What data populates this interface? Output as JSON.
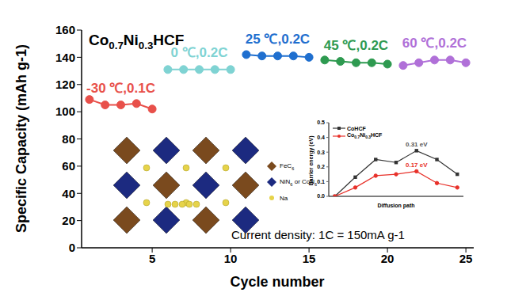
{
  "chart_data": [
    {
      "type": "line",
      "title": "Co0.7Ni0.3HCF",
      "x_label": "Cycle number",
      "y_label": "Specific Capacity (mAh g-1)",
      "x": [
        1,
        2,
        3,
        4,
        5,
        6,
        7,
        8,
        9,
        10,
        11,
        12,
        13,
        14,
        15,
        16,
        17,
        18,
        19,
        20,
        21,
        22,
        23,
        24,
        25
      ],
      "xlim": [
        0.5,
        25.5
      ],
      "xticks": [
        5,
        10,
        15,
        20,
        25
      ],
      "ylim": [
        0,
        160
      ],
      "yticks": [
        0,
        20,
        40,
        60,
        80,
        100,
        120,
        140,
        160
      ],
      "grid": false,
      "marker": "circle",
      "series": [
        {
          "name": "-30 ℃,0.1C",
          "color": "#e8504a",
          "values": [
            109,
            105,
            105,
            106,
            102,
            null,
            null,
            null,
            null,
            null,
            null,
            null,
            null,
            null,
            null,
            null,
            null,
            null,
            null,
            null,
            null,
            null,
            null,
            null,
            null
          ]
        },
        {
          "name": "0 ℃,0.2C",
          "color": "#7fd3d3",
          "values": [
            null,
            null,
            null,
            null,
            null,
            131,
            131,
            131,
            131,
            131,
            null,
            null,
            null,
            null,
            null,
            null,
            null,
            null,
            null,
            null,
            null,
            null,
            null,
            null,
            null
          ]
        },
        {
          "name": "25 ℃,0.2C",
          "color": "#1f6fcf",
          "values": [
            null,
            null,
            null,
            null,
            null,
            null,
            null,
            null,
            null,
            null,
            142,
            141,
            141,
            141,
            140,
            null,
            null,
            null,
            null,
            null,
            null,
            null,
            null,
            null,
            null
          ]
        },
        {
          "name": "45 ℃,0.2C",
          "color": "#2e9a50",
          "values": [
            null,
            null,
            null,
            null,
            null,
            null,
            null,
            null,
            null,
            null,
            null,
            null,
            null,
            null,
            null,
            138,
            137,
            136,
            136,
            135,
            null,
            null,
            null,
            null,
            null
          ]
        },
        {
          "name": "60 ℃,0.2C",
          "color": "#b070d8",
          "values": [
            null,
            null,
            null,
            null,
            null,
            null,
            null,
            null,
            null,
            null,
            null,
            null,
            null,
            null,
            null,
            null,
            null,
            null,
            null,
            null,
            134,
            136,
            138,
            138,
            136
          ]
        }
      ],
      "annotations": [
        {
          "text": "Current density: 1C = 150mA g-1"
        }
      ]
    },
    {
      "type": "line",
      "x_label": "Diffusion path",
      "y_label": "Barrier energy (eV)",
      "x": [
        0,
        1,
        2,
        3,
        4,
        5,
        6
      ],
      "xlim": [
        -0.3,
        6.3
      ],
      "ylim": [
        0,
        0.5
      ],
      "yticks": [
        {
          "value": 0,
          "label": "0.0"
        },
        0.1,
        0.2,
        0.3,
        0.4,
        0.5
      ],
      "tick_labels": "y",
      "legend": "upper left",
      "series": [
        {
          "name": "CoHCF",
          "color": "#333333",
          "marker": "square",
          "values": [
            0,
            0.13,
            0.25,
            0.23,
            0.31,
            0.25,
            0.15
          ]
        },
        {
          "name": "Co0.7Ni0.3HCF",
          "color": "#e8312a",
          "marker": "circle",
          "values": [
            0,
            0.06,
            0.14,
            0.15,
            0.17,
            0.09,
            0.06
          ]
        }
      ],
      "annotations": [
        {
          "text": "0.31 eV",
          "x": 4,
          "y": 0.31,
          "color": "#555555"
        },
        {
          "text": "0.17 eV",
          "x": 4,
          "y": 0.17,
          "color": "#e8312a"
        }
      ]
    }
  ],
  "diagram": {
    "legend": [
      {
        "label": "FeC6",
        "color": "#7a4a1e"
      },
      {
        "label": "NiN6 or CoN6",
        "color": "#1c2a80"
      },
      {
        "label": "Na",
        "color": "#e6d34a"
      }
    ]
  }
}
